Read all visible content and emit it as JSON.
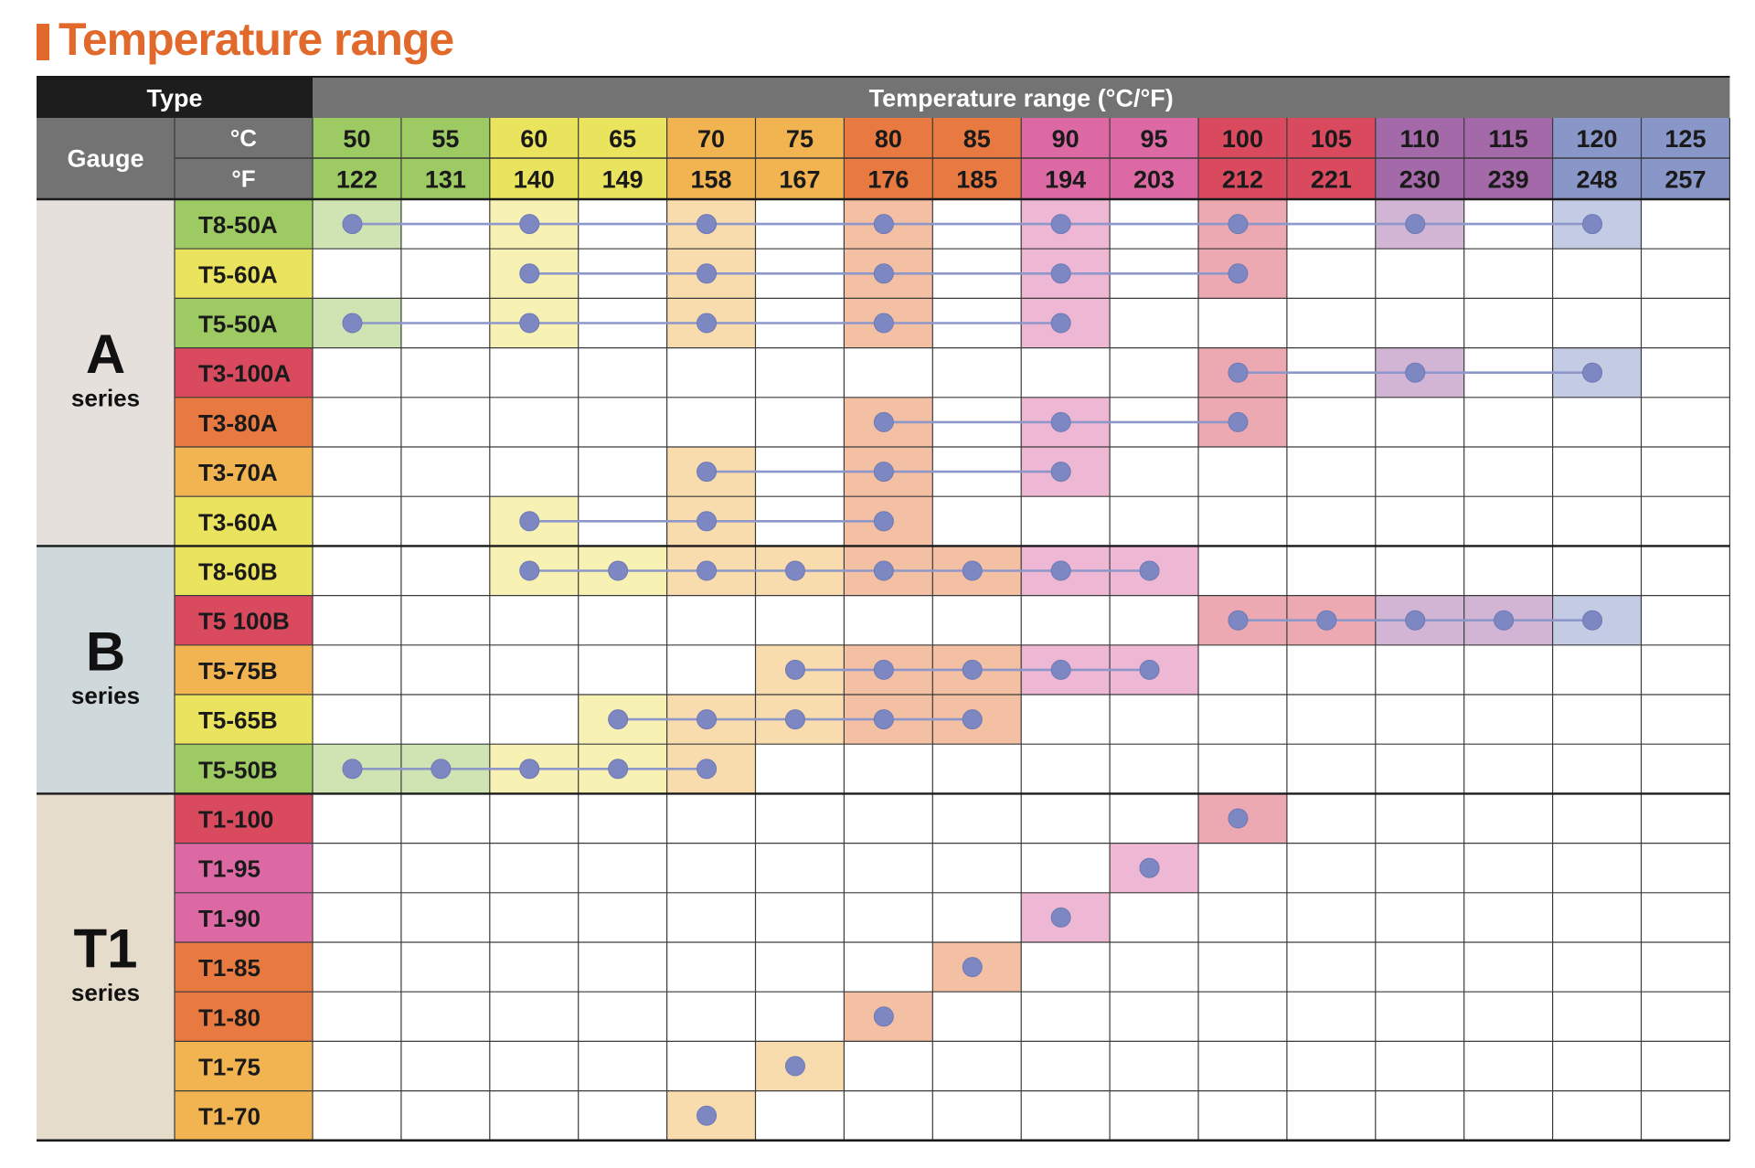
{
  "title": "Temperature range",
  "header": {
    "type_label": "Type",
    "range_label": "Temperature range (°C/°F)",
    "gauge_label": "Gauge",
    "c_unit": "°C",
    "f_unit": "°F"
  },
  "columns": [
    {
      "c": "50",
      "f": "122",
      "color": "#9dca63",
      "tint": "#cfe4b2"
    },
    {
      "c": "55",
      "f": "131",
      "color": "#9dca63",
      "tint": "#cfe4b2"
    },
    {
      "c": "60",
      "f": "140",
      "color": "#eae35d",
      "tint": "#f7f2b4"
    },
    {
      "c": "65",
      "f": "149",
      "color": "#eae35d",
      "tint": "#f7f2b4"
    },
    {
      "c": "70",
      "f": "158",
      "color": "#f1b451",
      "tint": "#f8dcae"
    },
    {
      "c": "75",
      "f": "167",
      "color": "#f1b451",
      "tint": "#f8dcae"
    },
    {
      "c": "80",
      "f": "176",
      "color": "#e77941",
      "tint": "#f3c0a3"
    },
    {
      "c": "85",
      "f": "185",
      "color": "#e77941",
      "tint": "#f3c0a3"
    },
    {
      "c": "90",
      "f": "194",
      "color": "#dd69a4",
      "tint": "#eeb7d3"
    },
    {
      "c": "95",
      "f": "203",
      "color": "#dd69a4",
      "tint": "#eeb7d3"
    },
    {
      "c": "100",
      "f": "212",
      "color": "#d94a5f",
      "tint": "#eca9b2"
    },
    {
      "c": "105",
      "f": "221",
      "color": "#d94a5f",
      "tint": "#eca9b2"
    },
    {
      "c": "110",
      "f": "230",
      "color": "#a369a9",
      "tint": "#d2b4d5"
    },
    {
      "c": "115",
      "f": "239",
      "color": "#a369a9",
      "tint": "#d2b4d5"
    },
    {
      "c": "120",
      "f": "248",
      "color": "#8896c8",
      "tint": "#c4cbe4"
    },
    {
      "c": "125",
      "f": "257",
      "color": "#8896c8",
      "tint": "#c4cbe4"
    }
  ],
  "series": [
    {
      "name": "A",
      "sub": "series",
      "bg": "#e5e0dc",
      "rows": [
        {
          "gauge": "T8-50A",
          "color": "#9dca63",
          "points": [
            50,
            60,
            70,
            80,
            90,
            100,
            110,
            120
          ]
        },
        {
          "gauge": "T5-60A",
          "color": "#eae35d",
          "points": [
            60,
            70,
            80,
            90,
            100
          ]
        },
        {
          "gauge": "T5-50A",
          "color": "#9dca63",
          "points": [
            50,
            60,
            70,
            80,
            90
          ]
        },
        {
          "gauge": "T3-100A",
          "color": "#d94a5f",
          "points": [
            100,
            110,
            120
          ]
        },
        {
          "gauge": "T3-80A",
          "color": "#e77941",
          "points": [
            80,
            90,
            100
          ]
        },
        {
          "gauge": "T3-70A",
          "color": "#f1b451",
          "points": [
            70,
            80,
            90
          ]
        },
        {
          "gauge": "T3-60A",
          "color": "#eae35d",
          "points": [
            60,
            70,
            80
          ]
        }
      ]
    },
    {
      "name": "B",
      "sub": "series",
      "bg": "#cfd8da",
      "rows": [
        {
          "gauge": "T8-60B",
          "color": "#eae35d",
          "points": [
            60,
            65,
            70,
            75,
            80,
            85,
            90,
            95
          ]
        },
        {
          "gauge": "T5 100B",
          "color": "#d94a5f",
          "points": [
            100,
            105,
            110,
            115,
            120
          ]
        },
        {
          "gauge": "T5-75B",
          "color": "#f1b451",
          "points": [
            75,
            80,
            85,
            90,
            95
          ]
        },
        {
          "gauge": "T5-65B",
          "color": "#eae35d",
          "points": [
            65,
            70,
            75,
            80,
            85
          ]
        },
        {
          "gauge": "T5-50B",
          "color": "#9dca63",
          "points": [
            50,
            55,
            60,
            65,
            70
          ]
        }
      ]
    },
    {
      "name": "T1",
      "sub": "series",
      "bg": "#e6dccb",
      "rows": [
        {
          "gauge": "T1-100",
          "color": "#d94a5f",
          "points": [
            100
          ]
        },
        {
          "gauge": "T1-95",
          "color": "#dd69a4",
          "points": [
            95
          ]
        },
        {
          "gauge": "T1-90",
          "color": "#dd69a4",
          "points": [
            90
          ]
        },
        {
          "gauge": "T1-85",
          "color": "#e77941",
          "points": [
            85
          ]
        },
        {
          "gauge": "T1-80",
          "color": "#e77941",
          "points": [
            80
          ]
        },
        {
          "gauge": "T1-75",
          "color": "#f1b451",
          "points": [
            75
          ]
        },
        {
          "gauge": "T1-70",
          "color": "#f1b451",
          "points": [
            70
          ]
        }
      ]
    }
  ],
  "colors": {
    "title": "#e2692c",
    "header_dark": "#1d1d1d",
    "header_gray": "#737373",
    "marker": "#7d88c2",
    "line": "#8e97c9",
    "grid": "#3a3a3a"
  }
}
